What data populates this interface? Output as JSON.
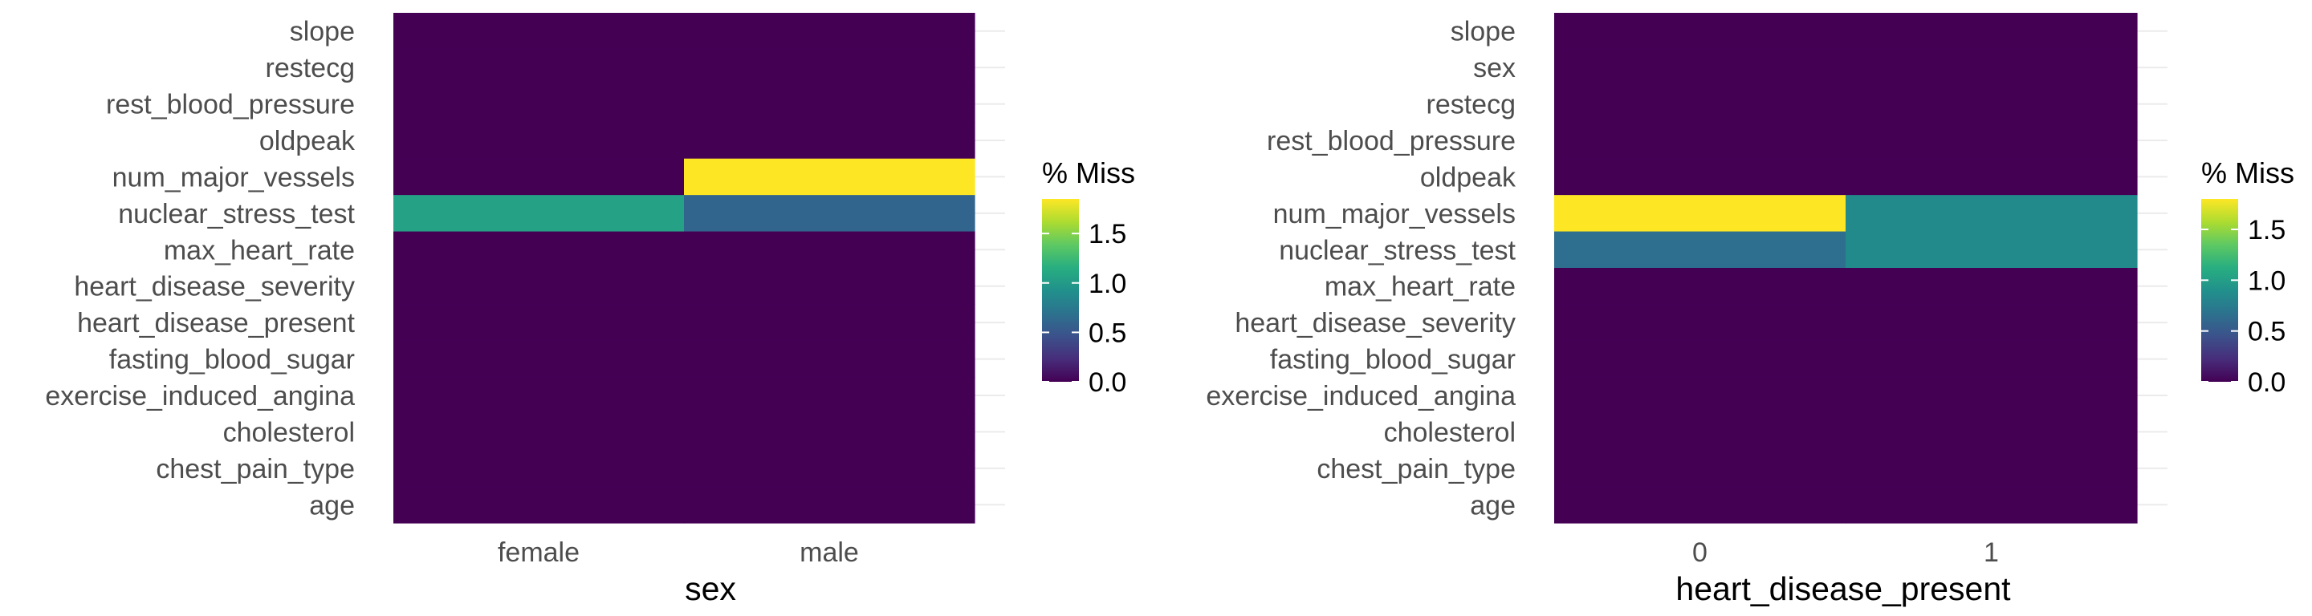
{
  "chart_data": [
    {
      "type": "heatmap",
      "xlabel": "sex",
      "x": [
        "female",
        "male"
      ],
      "y": [
        "slope",
        "restecg",
        "rest_blood_pressure",
        "oldpeak",
        "num_major_vessels",
        "nuclear_stress_test",
        "max_heart_rate",
        "heart_disease_severity",
        "heart_disease_present",
        "fasting_blood_sugar",
        "exercise_induced_angina",
        "cholesterol",
        "chest_pain_type",
        "age"
      ],
      "values": [
        [
          0,
          0
        ],
        [
          0,
          0
        ],
        [
          0,
          0
        ],
        [
          0,
          0
        ],
        [
          0,
          1.85
        ],
        [
          1.05,
          0.6
        ],
        [
          0,
          0
        ],
        [
          0,
          0
        ],
        [
          0,
          0
        ],
        [
          0,
          0
        ],
        [
          0,
          0
        ],
        [
          0,
          0
        ],
        [
          0,
          0
        ],
        [
          0,
          0
        ]
      ],
      "legend": {
        "title": "% Miss",
        "ticks": [
          0.0,
          0.5,
          1.0,
          1.5
        ],
        "tick_labels": [
          "0.0",
          "0.5",
          "1.0",
          "1.5"
        ],
        "range": [
          0,
          1.85
        ]
      },
      "colormap": "viridis"
    },
    {
      "type": "heatmap",
      "xlabel": "heart_disease_present",
      "x": [
        "0",
        "1"
      ],
      "y": [
        "slope",
        "sex",
        "restecg",
        "rest_blood_pressure",
        "oldpeak",
        "num_major_vessels",
        "nuclear_stress_test",
        "max_heart_rate",
        "heart_disease_severity",
        "fasting_blood_sugar",
        "exercise_induced_angina",
        "cholesterol",
        "chest_pain_type",
        "age"
      ],
      "values": [
        [
          0,
          0
        ],
        [
          0,
          0
        ],
        [
          0,
          0
        ],
        [
          0,
          0
        ],
        [
          0,
          0
        ],
        [
          1.8,
          0.85
        ],
        [
          0.65,
          0.85
        ],
        [
          0,
          0
        ],
        [
          0,
          0
        ],
        [
          0,
          0
        ],
        [
          0,
          0
        ],
        [
          0,
          0
        ],
        [
          0,
          0
        ],
        [
          0,
          0
        ]
      ],
      "legend": {
        "title": "% Miss",
        "ticks": [
          0.0,
          0.5,
          1.0,
          1.5
        ],
        "tick_labels": [
          "0.0",
          "0.5",
          "1.0",
          "1.5"
        ],
        "range": [
          0,
          1.8
        ]
      },
      "colormap": "viridis"
    }
  ]
}
